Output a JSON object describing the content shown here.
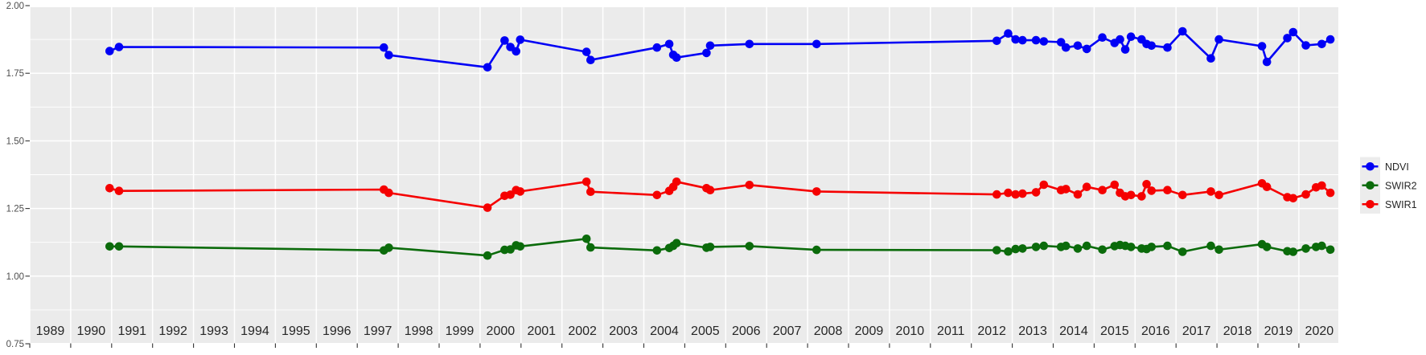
{
  "chart_data": {
    "type": "line",
    "title": "",
    "xlabel": "",
    "ylabel": "",
    "x_domain": [
      1989.0,
      2020.96
    ],
    "y_domain": [
      0.75,
      2.0
    ],
    "x_tick_labels": [
      "1989",
      "1990",
      "1991",
      "1992",
      "1993",
      "1994",
      "1995",
      "1996",
      "1997",
      "1998",
      "1999",
      "2000",
      "2001",
      "2002",
      "2003",
      "2004",
      "2005",
      "2006",
      "2007",
      "2008",
      "2009",
      "2010",
      "2011",
      "2012",
      "2013",
      "2014",
      "2015",
      "2016",
      "2017",
      "2018",
      "2019",
      "2020"
    ],
    "y_tick_labels": [
      "2.00",
      "1.75",
      "1.50",
      "1.25",
      "1.00",
      "0.75"
    ],
    "y_tick_values": [
      2.0,
      1.75,
      1.5,
      1.25,
      1.0,
      0.75
    ],
    "grid": {
      "major_on": true,
      "minor_horizontal_on": true,
      "gridline_color": "#ffffff"
    },
    "panel_bg": "#ebebeb",
    "page_bg": "#ffffff",
    "legend": {
      "position": "right",
      "key_bg": "#ececec"
    },
    "series": [
      {
        "name": "NDVI",
        "color": "#0000f5",
        "x": [
          1990.95,
          1991.18,
          1997.65,
          1997.77,
          2000.18,
          2000.6,
          2000.74,
          2000.88,
          2000.98,
          2002.6,
          2002.7,
          2004.32,
          2004.62,
          2004.72,
          2004.8,
          2005.53,
          2005.62,
          2006.58,
          2008.22,
          2012.62,
          2012.9,
          2013.08,
          2013.25,
          2013.58,
          2013.77,
          2014.19,
          2014.31,
          2014.6,
          2014.82,
          2015.2,
          2015.5,
          2015.63,
          2015.76,
          2015.9,
          2016.16,
          2016.28,
          2016.4,
          2016.79,
          2017.16,
          2017.85,
          2018.05,
          2019.1,
          2019.22,
          2019.72,
          2019.86,
          2020.17,
          2020.56,
          2020.77
        ],
        "y": [
          1.832,
          1.847,
          1.845,
          1.817,
          1.772,
          1.871,
          1.847,
          1.831,
          1.874,
          1.829,
          1.799,
          1.845,
          1.858,
          1.818,
          1.808,
          1.825,
          1.852,
          1.858,
          1.858,
          1.87,
          1.897,
          1.875,
          1.872,
          1.872,
          1.868,
          1.865,
          1.845,
          1.852,
          1.84,
          1.882,
          1.862,
          1.875,
          1.838,
          1.885,
          1.875,
          1.858,
          1.852,
          1.845,
          1.905,
          1.805,
          1.875,
          1.85,
          1.792,
          1.88,
          1.902,
          1.853,
          1.858,
          1.875
        ]
      },
      {
        "name": "SWIR2",
        "color": "#0b6b0b",
        "x": [
          1990.95,
          1991.18,
          1997.65,
          1997.77,
          2000.18,
          2000.6,
          2000.74,
          2000.88,
          2000.98,
          2002.6,
          2002.7,
          2004.32,
          2004.62,
          2004.72,
          2004.8,
          2005.53,
          2005.62,
          2006.58,
          2008.22,
          2012.62,
          2012.9,
          2013.08,
          2013.25,
          2013.58,
          2013.77,
          2014.19,
          2014.31,
          2014.6,
          2014.82,
          2015.2,
          2015.5,
          2015.63,
          2015.76,
          2015.9,
          2016.16,
          2016.28,
          2016.4,
          2016.79,
          2017.16,
          2017.85,
          2018.05,
          2019.1,
          2019.22,
          2019.72,
          2019.86,
          2020.17,
          2020.42,
          2020.56,
          2020.77
        ],
        "y": [
          1.11,
          1.11,
          1.095,
          1.105,
          1.076,
          1.097,
          1.099,
          1.114,
          1.11,
          1.138,
          1.106,
          1.095,
          1.104,
          1.112,
          1.122,
          1.105,
          1.108,
          1.111,
          1.097,
          1.096,
          1.091,
          1.1,
          1.102,
          1.108,
          1.112,
          1.108,
          1.112,
          1.102,
          1.112,
          1.098,
          1.111,
          1.115,
          1.112,
          1.108,
          1.102,
          1.1,
          1.108,
          1.112,
          1.09,
          1.112,
          1.098,
          1.118,
          1.108,
          1.092,
          1.09,
          1.102,
          1.108,
          1.112,
          1.098
        ]
      },
      {
        "name": "SWIR1",
        "color": "#f50000",
        "x": [
          1990.95,
          1991.18,
          1997.65,
          1997.77,
          2000.18,
          2000.6,
          2000.74,
          2000.88,
          2000.98,
          2002.6,
          2002.7,
          2004.32,
          2004.62,
          2004.72,
          2004.8,
          2005.53,
          2005.62,
          2006.58,
          2008.22,
          2012.62,
          2012.9,
          2013.08,
          2013.25,
          2013.58,
          2013.77,
          2014.19,
          2014.31,
          2014.6,
          2014.82,
          2015.2,
          2015.5,
          2015.63,
          2015.76,
          2015.9,
          2016.16,
          2016.28,
          2016.4,
          2016.79,
          2017.16,
          2017.85,
          2018.05,
          2019.1,
          2019.22,
          2019.72,
          2019.86,
          2020.17,
          2020.42,
          2020.56,
          2020.77
        ],
        "y": [
          1.325,
          1.315,
          1.32,
          1.308,
          1.253,
          1.297,
          1.301,
          1.318,
          1.313,
          1.349,
          1.312,
          1.3,
          1.315,
          1.33,
          1.349,
          1.325,
          1.318,
          1.337,
          1.313,
          1.302,
          1.308,
          1.302,
          1.305,
          1.31,
          1.338,
          1.318,
          1.322,
          1.302,
          1.33,
          1.318,
          1.338,
          1.308,
          1.295,
          1.3,
          1.295,
          1.34,
          1.316,
          1.318,
          1.3,
          1.313,
          1.3,
          1.343,
          1.33,
          1.292,
          1.288,
          1.302,
          1.328,
          1.335,
          1.308
        ]
      }
    ]
  }
}
